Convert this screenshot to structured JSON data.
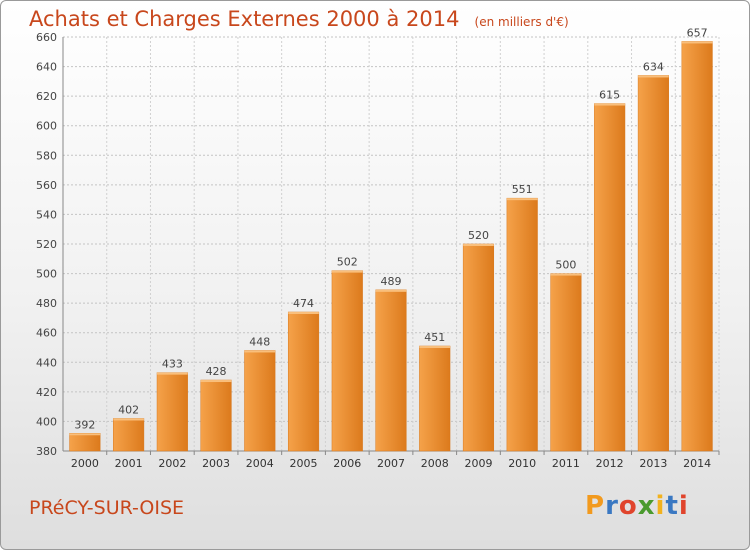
{
  "header": {
    "title": "Achats et Charges Externes 2000 à 2014",
    "subtitle": "(en milliers d'€)"
  },
  "footer": {
    "commune": "PRéCY-SUR-OISE",
    "brand": "Proxiti",
    "brand_letters": [
      {
        "ch": "P",
        "color": "#f29a1e"
      },
      {
        "ch": "r",
        "color": "#3a78c2"
      },
      {
        "ch": "o",
        "color": "#e0442c"
      },
      {
        "ch": "x",
        "color": "#4a9a2e"
      },
      {
        "ch": "i",
        "color": "#f2b21e"
      },
      {
        "ch": "t",
        "color": "#3a78c2"
      },
      {
        "ch": "i",
        "color": "#e0442c"
      }
    ]
  },
  "chart_data": {
    "type": "bar",
    "title": "Achats et Charges Externes 2000 à 2014",
    "subtitle": "(en milliers d'€)",
    "categories": [
      "2000",
      "2001",
      "2002",
      "2003",
      "2004",
      "2005",
      "2006",
      "2007",
      "2008",
      "2009",
      "2010",
      "2011",
      "2012",
      "2013",
      "2014"
    ],
    "values": [
      392,
      402,
      433,
      428,
      448,
      474,
      502,
      489,
      451,
      520,
      551,
      500,
      615,
      634,
      657
    ],
    "ylim": [
      380,
      660
    ],
    "yticks": [
      380,
      400,
      420,
      440,
      460,
      480,
      500,
      520,
      540,
      560,
      580,
      600,
      620,
      640,
      660
    ],
    "grid": true,
    "bar_color": "#f0922e",
    "bar_color_light": "#f7b462",
    "bar_color_dark": "#d97318",
    "value_labels": true
  }
}
